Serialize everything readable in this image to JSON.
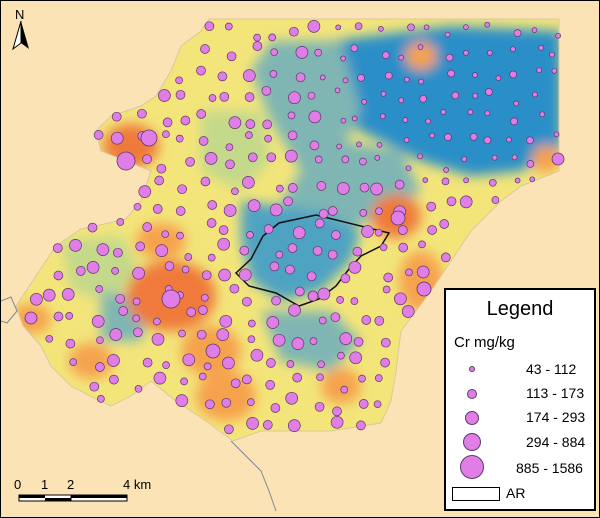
{
  "north_arrow": {
    "label": "N",
    "icon": "north-arrow-icon"
  },
  "legend": {
    "title": "Legend",
    "variable": "Cr mg/kg",
    "classes": [
      {
        "label": "43 - 112"
      },
      {
        "label": "113 - 173"
      },
      {
        "label": "174 - 293"
      },
      {
        "label": "294 - 884"
      },
      {
        "label": "885 - 1586"
      }
    ],
    "area_label": "AR"
  },
  "scale_bar": {
    "ticks": [
      "0",
      "1",
      "2",
      "4 km"
    ]
  },
  "colors": {
    "background": "#fbe3b5",
    "point_fill": "#e07de6",
    "low": "#2b8fc8",
    "mid_low": "#7fb6b3",
    "mid": "#c4d98a",
    "mid_high": "#f3e57a",
    "high": "#f6a24d",
    "very_high": "#ef7a3a"
  }
}
